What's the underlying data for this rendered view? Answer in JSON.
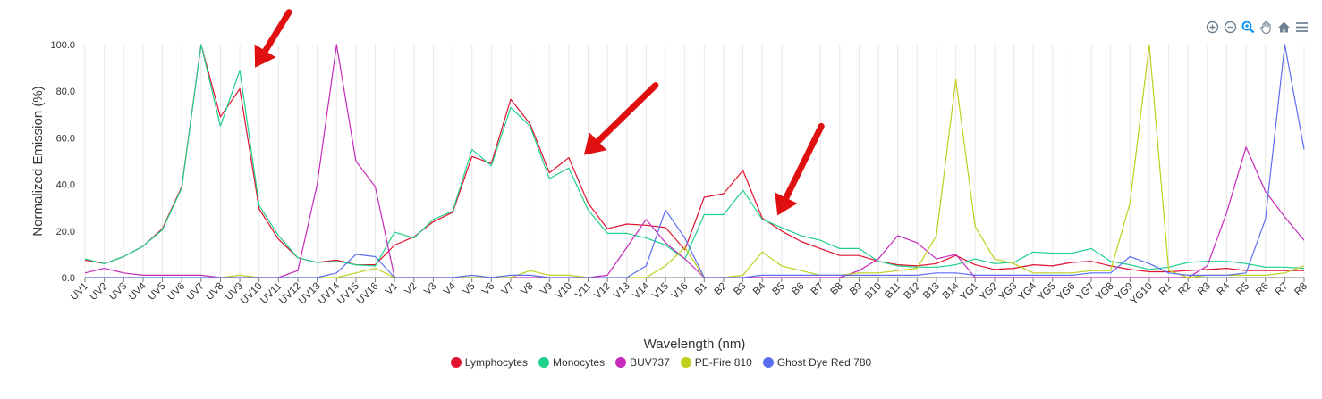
{
  "toolbar": {
    "icons": [
      "zoom-in-icon",
      "zoom-out-icon",
      "selection-zoom-icon",
      "pan-hand-icon",
      "home-reset-icon",
      "menu-icon"
    ]
  },
  "colors": {
    "Lymphocytes": "#e0122f",
    "Monocytes": "#1fd18a",
    "BUV737": "#c62ab9",
    "PE-Fire 810": "#bfcf1c",
    "Ghost Dye Red 780": "#5b6ef0",
    "arrow": "#e01010",
    "grid": "#e8e8e8",
    "axis": "#777777"
  },
  "chart_data": {
    "type": "line",
    "xlabel": "Wavelength (nm)",
    "ylabel": "Normalized Emission (%)",
    "ylim": [
      0,
      100
    ],
    "yticks": [
      "0.0",
      "20.0",
      "40.0",
      "60.0",
      "80.0",
      "100.0"
    ],
    "grid": "vertical",
    "legend_position": "bottom-center",
    "categories": [
      "UV1",
      "UV2",
      "UV3",
      "UV4",
      "UV5",
      "UV6",
      "UV7",
      "UV8",
      "UV9",
      "UV10",
      "UV11",
      "UV12",
      "UV13",
      "UV14",
      "UV15",
      "UV16",
      "V1",
      "V2",
      "V3",
      "V4",
      "V5",
      "V6",
      "V7",
      "V8",
      "V9",
      "V10",
      "V11",
      "V12",
      "V13",
      "V14",
      "V15",
      "V16",
      "B1",
      "B2",
      "B3",
      "B4",
      "B5",
      "B6",
      "B7",
      "B8",
      "B9",
      "B10",
      "B11",
      "B12",
      "B13",
      "B14",
      "YG1",
      "YG2",
      "YG3",
      "YG4",
      "YG5",
      "YG6",
      "YG7",
      "YG8",
      "YG9",
      "YG10",
      "R1",
      "R2",
      "R3",
      "R4",
      "R5",
      "R6",
      "R7",
      "R8"
    ],
    "series": [
      {
        "name": "Lymphocytes",
        "values": [
          7.5,
          6,
          9,
          13.5,
          21,
          39,
          100,
          69,
          81,
          29.5,
          16.5,
          8.5,
          6.5,
          7.5,
          5.5,
          5.5,
          14,
          17.5,
          24,
          28,
          52,
          49,
          76.5,
          66,
          45,
          51.5,
          32,
          21,
          23,
          22.5,
          21.5,
          12,
          34.5,
          36,
          46,
          25.5,
          20,
          15.5,
          12.5,
          9.5,
          9.5,
          7,
          5.5,
          5,
          6,
          9.5,
          5.5,
          3.5,
          4,
          5.5,
          5,
          6.5,
          7,
          5,
          3.5,
          2.5,
          2.5,
          3,
          3.5,
          4,
          3,
          3,
          3,
          3
        ]
      },
      {
        "name": "Monocytes",
        "values": [
          8,
          6,
          9,
          13.5,
          20.5,
          38.5,
          100,
          65,
          89,
          31,
          18,
          8.5,
          6.5,
          7,
          5.5,
          5,
          19.5,
          17,
          25,
          28.5,
          55,
          48,
          73,
          65,
          42.5,
          47,
          29,
          19,
          19,
          17,
          14,
          8,
          27,
          27,
          37.5,
          25,
          21.5,
          18,
          16,
          12.5,
          12.5,
          7,
          5,
          4.5,
          4.5,
          5.5,
          8,
          6,
          6.5,
          11,
          10.5,
          10.5,
          12.5,
          7,
          5.5,
          3.5,
          4.5,
          6.5,
          7,
          7,
          6,
          4.5,
          4.5,
          4
        ]
      },
      {
        "name": "BUV737",
        "values": [
          2,
          4,
          2,
          1,
          1,
          1,
          1,
          0,
          0,
          0,
          0,
          3,
          40,
          100,
          50,
          39,
          0,
          0,
          0,
          0,
          0,
          0,
          0,
          0,
          0,
          0,
          0,
          1,
          13,
          25,
          15,
          8,
          0,
          0,
          0,
          0,
          0,
          0,
          0,
          0,
          3,
          8,
          18,
          15,
          8,
          10,
          0,
          0,
          0,
          0,
          0,
          0,
          0,
          0,
          0,
          0,
          0,
          0,
          5,
          28,
          56,
          37,
          26,
          16
        ]
      },
      {
        "name": "PE-Fire 810",
        "values": [
          0,
          0,
          0,
          0,
          0,
          0,
          0,
          0,
          1,
          0,
          0,
          0,
          0,
          0,
          2,
          4,
          0,
          0,
          0,
          0,
          0,
          0,
          0,
          3,
          1,
          1,
          0,
          0,
          0,
          0,
          5,
          13,
          0,
          0,
          1,
          11,
          5,
          3,
          1,
          1,
          2,
          2,
          3,
          4,
          18,
          85,
          22,
          8,
          6,
          2,
          2,
          2,
          3,
          3,
          32,
          100,
          3,
          0,
          1,
          1,
          1,
          1,
          2,
          5
        ]
      },
      {
        "name": "Ghost Dye Red 780",
        "values": [
          0,
          0,
          0,
          0,
          0,
          0,
          0,
          0,
          0,
          0,
          0,
          0,
          0,
          2,
          10,
          9,
          0,
          0,
          0,
          0,
          1,
          0,
          1,
          1,
          0,
          0,
          0,
          0,
          0,
          5,
          29,
          17,
          0,
          0,
          0,
          1,
          1,
          1,
          1,
          1,
          1,
          1,
          1,
          1,
          2,
          2,
          1,
          1,
          1,
          1,
          1,
          1,
          2,
          2,
          9,
          6,
          2,
          1,
          1,
          1,
          2,
          25,
          100,
          55
        ]
      }
    ],
    "annotations": [
      {
        "type": "arrow",
        "points_to": "UV9"
      },
      {
        "type": "arrow",
        "points_to": "V10"
      },
      {
        "type": "arrow",
        "points_to": "B4"
      }
    ]
  }
}
